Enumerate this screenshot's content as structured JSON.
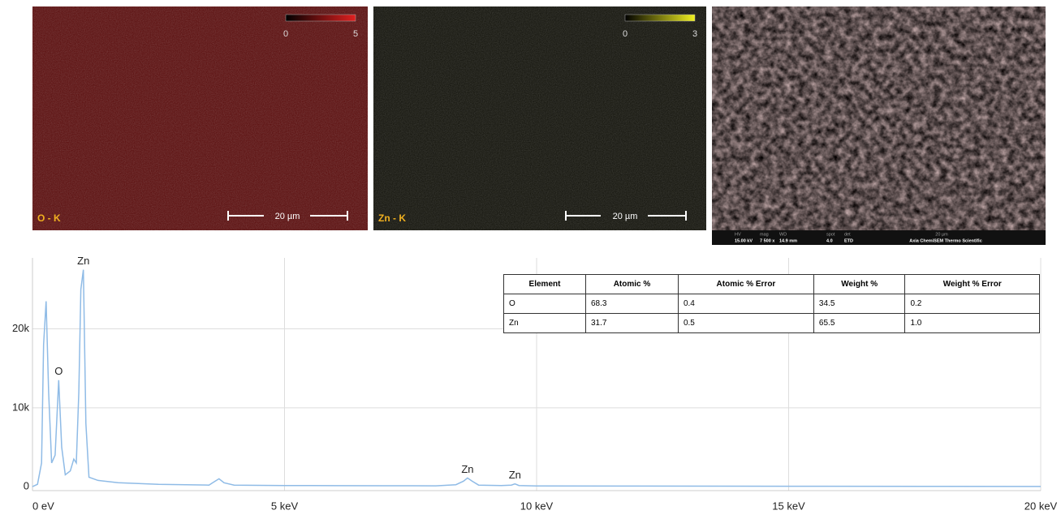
{
  "panels": [
    {
      "label": "O - K",
      "scale_min": "0",
      "scale_max": "5",
      "scale_bar": "20 µm"
    },
    {
      "label": "Zn - K",
      "scale_min": "0",
      "scale_max": "3",
      "scale_bar": "20 µm"
    }
  ],
  "sem_footer": [
    "HV",
    "15.00 kV",
    "mag",
    "7 500 x",
    "WD",
    "14.9 mm",
    "spot",
    "4.0",
    "det",
    "ETD",
    "20 µm",
    "Axia ChemiSEM Thermo Scientific"
  ],
  "table": {
    "header": [
      "Element",
      "Atomic %",
      "Atomic % Error",
      "Weight %",
      "Weight % Error"
    ],
    "rows": [
      [
        "O",
        "68.3",
        "0.4",
        "34.5",
        "0.2"
      ],
      [
        "Zn",
        "31.7",
        "0.5",
        "65.5",
        "1.0"
      ]
    ]
  },
  "chart_data": {
    "type": "line",
    "color": "#8fbbe6",
    "grid": true,
    "x": [
      0,
      0.1,
      0.18,
      0.22,
      0.27,
      0.32,
      0.38,
      0.45,
      0.52,
      0.58,
      0.65,
      0.75,
      0.82,
      0.87,
      0.92,
      0.96,
      1.01,
      1.06,
      1.12,
      1.3,
      1.7,
      2.5,
      3.5,
      3.6,
      3.7,
      3.8,
      4.0,
      5,
      6,
      7,
      8,
      8.4,
      8.55,
      8.63,
      8.72,
      8.85,
      9.3,
      9.5,
      9.57,
      9.65,
      10,
      12,
      15,
      18,
      20
    ],
    "values": [
      0,
      300,
      3000,
      18000,
      23500,
      12000,
      3000,
      4000,
      13500,
      5000,
      1500,
      2000,
      3500,
      3000,
      12000,
      25000,
      27500,
      8000,
      1200,
      800,
      500,
      300,
      200,
      600,
      1000,
      500,
      200,
      150,
      130,
      120,
      110,
      250,
      700,
      1100,
      700,
      200,
      150,
      200,
      350,
      150,
      100,
      80,
      60,
      40,
      20
    ],
    "xlim": [
      0,
      20
    ],
    "ylim": [
      -500,
      29000
    ],
    "xticks": [
      {
        "value": 0,
        "label": "0 eV"
      },
      {
        "value": 5,
        "label": "5 keV"
      },
      {
        "value": 10,
        "label": "10 keV"
      },
      {
        "value": 15,
        "label": "15 keV"
      },
      {
        "value": 20,
        "label": "20 keV"
      }
    ],
    "yticks": [
      0,
      {
        "value": 10000,
        "label": "10k"
      },
      {
        "value": 20000,
        "label": "20k"
      }
    ],
    "annotations": [
      {
        "text": "Zn",
        "x": 1.01,
        "y": 27500
      },
      {
        "text": "O",
        "x": 0.52,
        "y": 13500
      },
      {
        "text": "Zn",
        "x": 8.63,
        "y": 1100
      },
      {
        "text": "Zn",
        "x": 9.57,
        "y": 350
      }
    ]
  }
}
